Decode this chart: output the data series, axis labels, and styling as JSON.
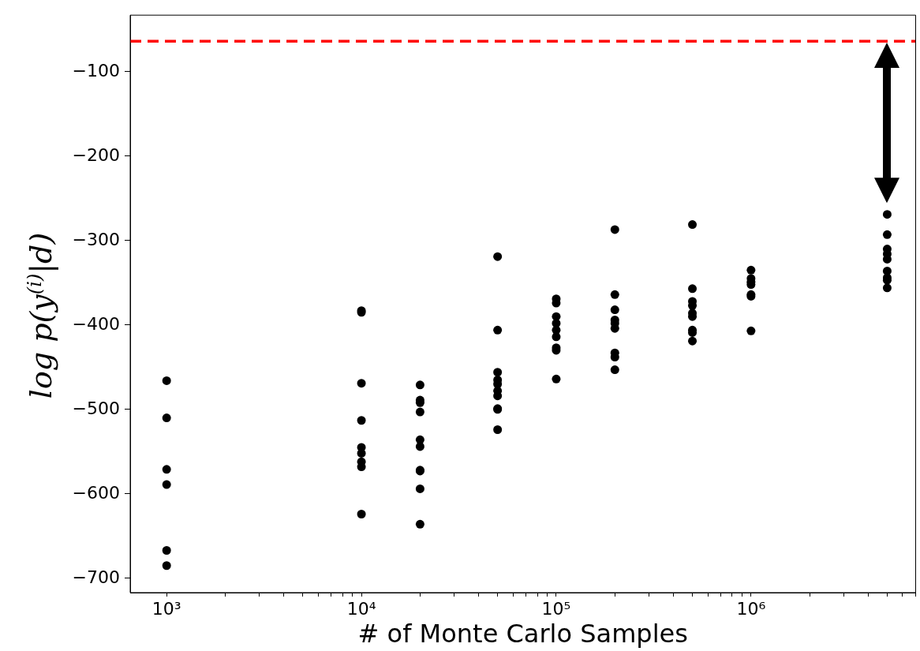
{
  "chart_data": {
    "type": "scatter",
    "xlabel": "# of Monte Carlo Samples",
    "ylabel": "log p(y$^{(i)}$|d)",
    "log": "x",
    "grid": false,
    "legend": false,
    "marker": "circle",
    "xlim": [
      650,
      7000000
    ],
    "xticks": [
      {
        "value": 1000,
        "label": "10³"
      },
      {
        "value": 2000,
        "label": null
      },
      {
        "value": 3000,
        "label": null
      },
      {
        "value": 4000,
        "label": null
      },
      {
        "value": 5000,
        "label": null
      },
      {
        "value": 6000,
        "label": null
      },
      {
        "value": 7000,
        "label": null
      },
      {
        "value": 8000,
        "label": null
      },
      {
        "value": 9000,
        "label": null
      },
      {
        "value": 10000,
        "label": "10⁴"
      },
      {
        "value": 20000,
        "label": null
      },
      {
        "value": 30000,
        "label": null
      },
      {
        "value": 40000,
        "label": null
      },
      {
        "value": 50000,
        "label": null
      },
      {
        "value": 60000,
        "label": null
      },
      {
        "value": 70000,
        "label": null
      },
      {
        "value": 80000,
        "label": null
      },
      {
        "value": 90000,
        "label": null
      },
      {
        "value": 100000,
        "label": "10⁵"
      },
      {
        "value": 200000,
        "label": null
      },
      {
        "value": 300000,
        "label": null
      },
      {
        "value": 400000,
        "label": null
      },
      {
        "value": 500000,
        "label": null
      },
      {
        "value": 600000,
        "label": null
      },
      {
        "value": 700000,
        "label": null
      },
      {
        "value": 800000,
        "label": null
      },
      {
        "value": 900000,
        "label": null
      },
      {
        "value": 1000000,
        "label": "10⁶"
      },
      {
        "value": 2000000,
        "label": null
      },
      {
        "value": 3000000,
        "label": null
      },
      {
        "value": 4000000,
        "label": null
      },
      {
        "value": 5000000,
        "label": null
      },
      {
        "value": 6000000,
        "label": null
      },
      {
        "value": 7000000,
        "label": null
      }
    ],
    "ylim": [
      -717,
      -33
    ],
    "yticks": [
      {
        "value": -100,
        "label": "−100"
      },
      {
        "value": -200,
        "label": "−200"
      },
      {
        "value": -300,
        "label": "−300"
      },
      {
        "value": -400,
        "label": "−400"
      },
      {
        "value": -500,
        "label": "−500"
      },
      {
        "value": -600,
        "label": "−600"
      },
      {
        "value": -700,
        "label": "−700"
      }
    ],
    "ref_lines": [
      {
        "axis": "y",
        "value": -64,
        "color": "#ff0000",
        "line_style": "dashed"
      }
    ],
    "series": [
      {
        "color": "#000000",
        "x": [
          1000,
          1000,
          1000,
          1000,
          1000,
          1000,
          10000,
          10000,
          10000,
          10000,
          10000,
          10000,
          10000,
          10000,
          10000,
          20000,
          20000,
          20000,
          20000,
          20000,
          20000,
          20000,
          20000,
          20000,
          20000,
          50000,
          50000,
          50000,
          50000,
          50000,
          50000,
          50000,
          50000,
          50000,
          50000,
          100000,
          100000,
          100000,
          100000,
          100000,
          100000,
          100000,
          100000,
          100000,
          200000,
          200000,
          200000,
          200000,
          200000,
          200000,
          200000,
          200000,
          200000,
          500000,
          500000,
          500000,
          500000,
          500000,
          500000,
          500000,
          500000,
          500000,
          1000000,
          1000000,
          1000000,
          1000000,
          1000000,
          1000000,
          1000000,
          5000000,
          5000000,
          5000000,
          5000000,
          5000000,
          5000000,
          5000000,
          5000000,
          5000000
        ],
        "values": [
          -466,
          -510,
          -571,
          -589,
          -667,
          -685,
          -383,
          -385,
          -469,
          -513,
          -545,
          -552,
          -562,
          -568,
          -624,
          -471,
          -489,
          -492,
          -503,
          -536,
          -544,
          -572,
          -573,
          -594,
          -636,
          -319,
          -406,
          -456,
          -465,
          -470,
          -478,
          -484,
          -499,
          -500,
          -524,
          -369,
          -374,
          -390,
          -398,
          -406,
          -414,
          -427,
          -430,
          -464,
          -287,
          -364,
          -382,
          -394,
          -398,
          -404,
          -433,
          -438,
          -453,
          -281,
          -357,
          -372,
          -377,
          -386,
          -390,
          -406,
          -409,
          -419,
          -335,
          -345,
          -349,
          -352,
          -364,
          -366,
          -407,
          -269,
          -293,
          -310,
          -316,
          -322,
          -336,
          -344,
          -347,
          -356
        ]
      }
    ]
  }
}
